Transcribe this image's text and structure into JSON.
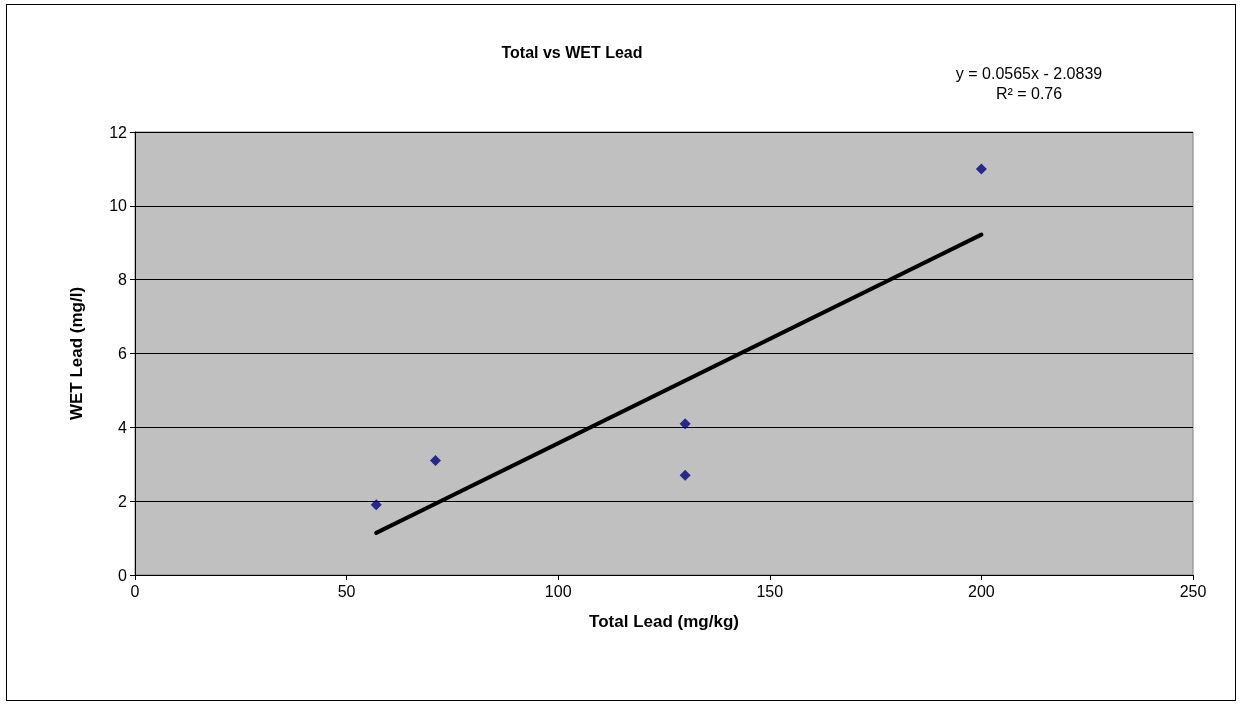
{
  "chart_data": {
    "type": "scatter",
    "title": "Total vs WET Lead",
    "xlabel": "Total Lead (mg/kg)",
    "ylabel": "WET Lead (mg/l)",
    "annotations": [
      "y = 0.0565x - 2.0839",
      "R² = 0.76"
    ],
    "series": [
      {
        "color": "#000080",
        "marker": "diamond",
        "x": [
          57,
          71,
          130,
          130,
          200
        ],
        "values": [
          1.9,
          3.1,
          4.1,
          2.7,
          11
        ]
      },
      {
        "type": "line",
        "color": "#000000",
        "marker": "none",
        "line_style": "solid",
        "x": [
          57,
          200
        ],
        "values": [
          1.14,
          9.22
        ]
      }
    ],
    "xlim": [
      0,
      250
    ],
    "xticks": [
      0,
      50,
      100,
      150,
      200,
      250
    ],
    "ylim": [
      0,
      12
    ],
    "yticks": [
      0,
      2,
      4,
      6,
      8,
      10,
      12
    ],
    "grid": "y"
  }
}
